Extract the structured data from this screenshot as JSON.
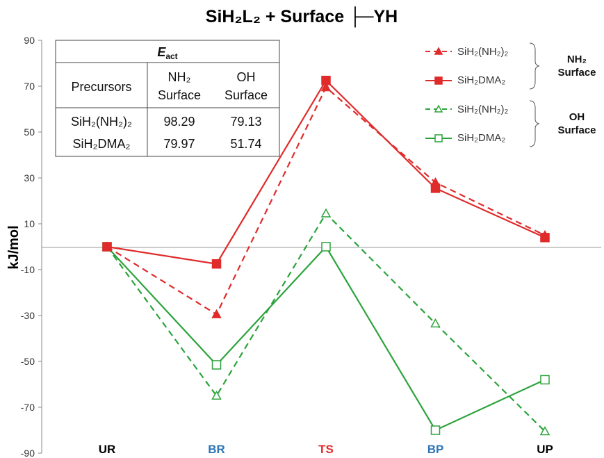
{
  "chart_data": {
    "type": "line",
    "title": "SiH₂L₂ + Surface ├─YH",
    "ylabel": "kJ/mol",
    "xlabel": "",
    "ylim": [
      -90,
      90
    ],
    "yticks": [
      "90",
      "70",
      "50",
      "30",
      "10",
      "-10",
      "-30",
      "-50",
      "-70",
      "-90"
    ],
    "categories": [
      "UR",
      "BR",
      "TS",
      "BP",
      "UP"
    ],
    "category_colors": [
      "#000000",
      "#2e75b6",
      "#e02b2b",
      "#2e75b6",
      "#000000"
    ],
    "series": [
      {
        "name": "SiH₂(NH₂)₂",
        "values": [
          0,
          -29.5,
          69.5,
          28,
          5
        ],
        "color": "#e02b2b",
        "marker": "triangle-filled",
        "dash": true
      },
      {
        "name": "SiH₂DMA₂",
        "values": [
          0,
          -7.5,
          72.5,
          25.5,
          4
        ],
        "color": "#e02b2b",
        "marker": "square-filled",
        "dash": false
      },
      {
        "name": "SiH₂(NH₂)₂",
        "values": [
          0,
          -65,
          14.5,
          -33.5,
          -80.5
        ],
        "color": "#2ba33b",
        "marker": "triangle-open",
        "dash": true
      },
      {
        "name": "SiH₂DMA₂",
        "values": [
          0,
          -51.5,
          0,
          -80,
          -58
        ],
        "color": "#2ba33b",
        "marker": "square-open",
        "dash": false
      }
    ],
    "legend_groups": [
      {
        "label_line1": "NH₂",
        "label_line2": "Surface"
      },
      {
        "label_line1": "OH",
        "label_line2": "Surface"
      }
    ],
    "legend_position": "top-right",
    "grid": false,
    "inset_table": {
      "header": "E",
      "header_sub": "act",
      "col0": "Precursors",
      "col1_line1": "NH₂",
      "col1_line2": "Surface",
      "col2_line1": "OH",
      "col2_line2": "Surface",
      "rows": [
        {
          "precursor": "SiH₂(NH₂)₂",
          "nh2": "98.29",
          "oh": "79.13"
        },
        {
          "precursor": "SiH₂DMA₂",
          "nh2": "79.97",
          "oh": "51.74"
        }
      ]
    }
  }
}
